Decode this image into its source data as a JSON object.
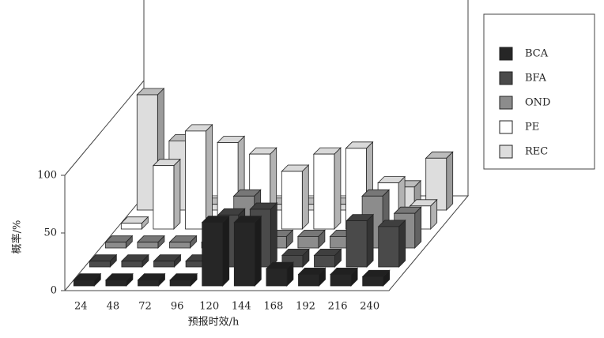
{
  "chart_data": {
    "type": "bar3d",
    "x_label": "预报时效/h",
    "y_label": "概率/%",
    "categories": [
      "24",
      "48",
      "72",
      "96",
      "120",
      "144",
      "168",
      "192",
      "216",
      "240"
    ],
    "series": [
      {
        "name": "BCA",
        "color": "#262626",
        "values": [
          5,
          5,
          5,
          5,
          55,
          55,
          15,
          10,
          10,
          8
        ]
      },
      {
        "name": "BFA",
        "color": "#4a4a4a",
        "values": [
          5,
          5,
          5,
          5,
          45,
          50,
          10,
          10,
          40,
          35
        ]
      },
      {
        "name": "OND",
        "color": "#8c8c8c",
        "values": [
          5,
          5,
          5,
          5,
          45,
          10,
          10,
          10,
          45,
          30
        ]
      },
      {
        "name": "PE",
        "color": "#ffffff",
        "values": [
          5,
          55,
          85,
          75,
          65,
          50,
          65,
          70,
          40,
          20
        ]
      },
      {
        "name": "REC",
        "color": "#dddddd",
        "values": [
          100,
          60,
          5,
          5,
          5,
          5,
          5,
          5,
          20,
          45
        ]
      }
    ],
    "ylim": [
      0,
      100
    ],
    "yticks": [
      0,
      50,
      100
    ]
  }
}
